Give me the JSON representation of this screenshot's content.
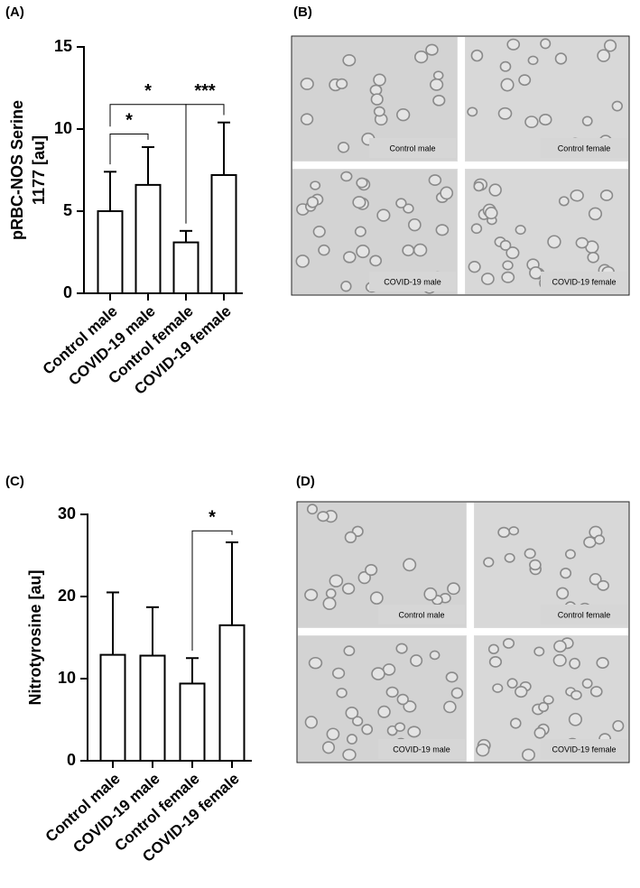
{
  "panel_labels": [
    "(A)",
    "(B)",
    "(C)",
    "(D)"
  ],
  "chart_data": [
    {
      "type": "bar",
      "ylabel": [
        "pRBC-NOS Serine",
        "1177 [au]"
      ],
      "categories": [
        "Control male",
        "COVID-19 male",
        "Control female",
        "COVID-19 female"
      ],
      "values": [
        5.0,
        6.6,
        3.1,
        7.2
      ],
      "errors": [
        2.4,
        2.3,
        0.7,
        3.2
      ],
      "color": "#ffffff",
      "ylim": [
        0,
        15
      ],
      "yticks": [
        0,
        5,
        10,
        15
      ],
      "annotations": [
        {
          "label": "*",
          "between": [
            0,
            1
          ],
          "y": 9.7
        },
        {
          "label": "*",
          "between": [
            0,
            2
          ],
          "y": 11.5
        },
        {
          "label": "***",
          "between": [
            2,
            3
          ],
          "y": 11.5
        }
      ]
    },
    {
      "type": "bar",
      "ylabel": [
        "Nitrotyrosine [au]"
      ],
      "categories": [
        "Control male",
        "COVID-19 male",
        "Control female",
        "COVID-19 female"
      ],
      "values": [
        12.9,
        12.8,
        9.4,
        16.5
      ],
      "errors": [
        7.6,
        5.9,
        3.1,
        10.1
      ],
      "color": "#ffffff",
      "ylim": [
        0,
        30
      ],
      "yticks": [
        0,
        10,
        20,
        30
      ],
      "annotations": [
        {
          "label": "*",
          "between": [
            2,
            3
          ],
          "y": 28
        }
      ]
    }
  ],
  "micrographs": [
    {
      "captions": [
        "Control male",
        "Control female",
        "COVID-19 male",
        "COVID-19 female"
      ]
    },
    {
      "captions": [
        "Control male",
        "Control female",
        "COVID-19 male",
        "COVID-19 female"
      ]
    }
  ]
}
